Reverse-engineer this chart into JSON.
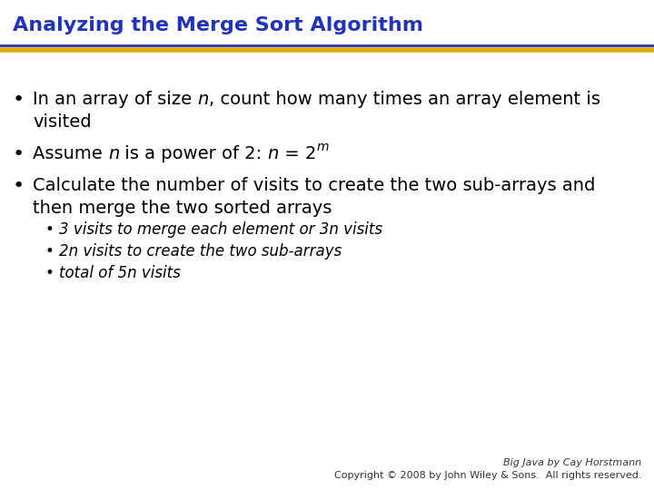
{
  "title": "Analyzing the Merge Sort Algorithm",
  "title_color": "#2233BB",
  "title_fontsize": 16,
  "background_color": "#FFFFFF",
  "top_line_color": "#2233BB",
  "bottom_line_color": "#DDAA00",
  "text_color": "#000000",
  "main_fontsize": 14,
  "sub_fontsize": 12,
  "footer_line1": "Big Java by Cay Horstmann",
  "footer_line2": "Copyright © 2008 by John Wiley & Sons.  All rights reserved.",
  "footer_color": "#333333",
  "footer_fontsize": 8,
  "sub_bullet1": "3 visits to merge each element or 3n visits",
  "sub_bullet2": "2n visits to create the two sub-arrays",
  "sub_bullet3": "total of 5n visits"
}
